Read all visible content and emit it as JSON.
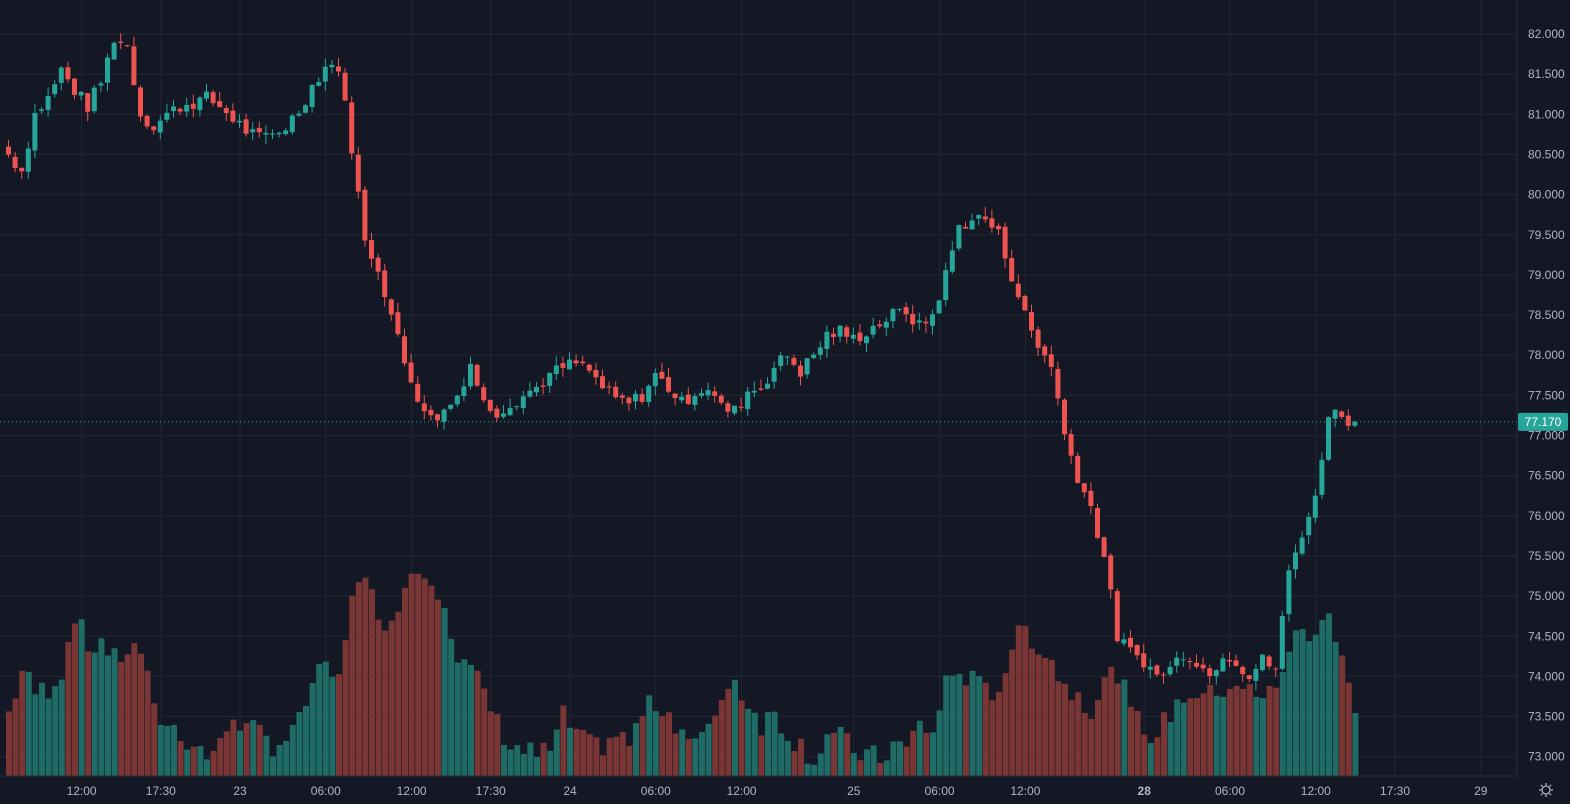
{
  "chart_data": {
    "type": "candlestick",
    "title": "",
    "colors": {
      "background": "#141824",
      "grid": "#232734",
      "up": "#26a69a",
      "down": "#ef5350",
      "up_volume": "#1f6b66",
      "down_volume": "#7a3535",
      "axis_text": "#b2b5be",
      "last_price_bg": "#26a69a"
    },
    "y_axis": {
      "ylim": [
        72.8,
        82.3
      ],
      "ticks": [
        "82.000",
        "81.500",
        "81.000",
        "80.500",
        "80.000",
        "79.500",
        "79.000",
        "78.500",
        "78.000",
        "77.500",
        "77.000",
        "76.500",
        "76.000",
        "75.500",
        "75.000",
        "74.500",
        "74.000",
        "73.500",
        "73.000"
      ]
    },
    "x_axis": {
      "labels": [
        {
          "label": "12:00",
          "i": 6,
          "bold": false
        },
        {
          "label": "17:30",
          "i": 18,
          "bold": false
        },
        {
          "label": "23",
          "i": 30,
          "bold": false
        },
        {
          "label": "06:00",
          "i": 43,
          "bold": false
        },
        {
          "label": "12:00",
          "i": 56,
          "bold": false
        },
        {
          "label": "17:30",
          "i": 68,
          "bold": false
        },
        {
          "label": "24",
          "i": 80,
          "bold": false
        },
        {
          "label": "06:00",
          "i": 93,
          "bold": false
        },
        {
          "label": "12:00",
          "i": 106,
          "bold": false
        },
        {
          "label": "25",
          "i": 123,
          "bold": false
        },
        {
          "label": "06:00",
          "i": 136,
          "bold": false
        },
        {
          "label": "12:00",
          "i": 149,
          "bold": false
        },
        {
          "label": "28",
          "i": 167,
          "bold": true
        },
        {
          "label": "06:00",
          "i": 180,
          "bold": false
        },
        {
          "label": "12:00",
          "i": 193,
          "bold": false
        },
        {
          "label": "17:30",
          "i": 205,
          "bold": false
        },
        {
          "label": "29",
          "i": 218,
          "bold": false
        }
      ]
    },
    "last_price": "77.170",
    "last_price_value": 77.17,
    "anchors": [
      [
        0,
        80.5,
        0.3
      ],
      [
        2,
        80.3,
        0.5
      ],
      [
        4,
        81.0,
        0.4
      ],
      [
        6,
        81.2,
        0.42
      ],
      [
        8,
        81.55,
        0.5
      ],
      [
        10,
        81.3,
        0.78
      ],
      [
        12,
        81.1,
        0.6
      ],
      [
        14,
        81.4,
        0.65
      ],
      [
        16,
        81.95,
        0.55
      ],
      [
        18,
        81.85,
        0.6
      ],
      [
        20,
        81.0,
        0.6
      ],
      [
        22,
        80.85,
        0.3
      ],
      [
        24,
        81.0,
        0.25
      ],
      [
        26,
        81.1,
        0.2
      ],
      [
        28,
        81.15,
        0.15
      ],
      [
        30,
        81.2,
        0.1
      ],
      [
        32,
        81.1,
        0.14
      ],
      [
        34,
        80.95,
        0.3
      ],
      [
        36,
        80.8,
        0.22
      ],
      [
        38,
        80.7,
        0.2
      ],
      [
        40,
        80.75,
        0.15
      ],
      [
        42,
        80.85,
        0.18
      ],
      [
        44,
        81.05,
        0.25
      ],
      [
        46,
        81.35,
        0.45
      ],
      [
        48,
        81.6,
        0.5
      ],
      [
        50,
        81.6,
        0.45
      ],
      [
        52,
        80.6,
        0.9
      ],
      [
        54,
        79.4,
        0.9
      ],
      [
        56,
        79.1,
        0.8
      ],
      [
        58,
        78.5,
        0.7
      ],
      [
        60,
        77.9,
        0.95
      ],
      [
        62,
        77.5,
        0.98
      ],
      [
        64,
        77.2,
        0.95
      ],
      [
        66,
        77.3,
        0.85
      ],
      [
        68,
        77.5,
        0.55
      ],
      [
        70,
        77.9,
        0.5
      ],
      [
        72,
        77.4,
        0.4
      ],
      [
        74,
        77.3,
        0.25
      ],
      [
        76,
        77.4,
        0.15
      ],
      [
        78,
        77.5,
        0.12
      ],
      [
        80,
        77.6,
        0.1
      ],
      [
        82,
        77.75,
        0.12
      ],
      [
        84,
        77.85,
        0.28
      ],
      [
        86,
        77.9,
        0.2
      ],
      [
        88,
        77.8,
        0.14
      ],
      [
        90,
        77.6,
        0.15
      ],
      [
        92,
        77.45,
        0.2
      ],
      [
        94,
        77.4,
        0.15
      ],
      [
        96,
        77.5,
        0.3
      ],
      [
        98,
        77.75,
        0.35
      ],
      [
        100,
        77.6,
        0.3
      ],
      [
        102,
        77.4,
        0.22
      ],
      [
        104,
        77.55,
        0.16
      ],
      [
        106,
        77.6,
        0.2
      ],
      [
        108,
        77.35,
        0.4
      ],
      [
        110,
        77.3,
        0.45
      ],
      [
        112,
        77.55,
        0.35
      ],
      [
        114,
        77.6,
        0.25
      ],
      [
        116,
        77.85,
        0.3
      ],
      [
        118,
        78.0,
        0.2
      ],
      [
        120,
        77.8,
        0.15
      ],
      [
        122,
        78.0,
        0.08
      ],
      [
        124,
        78.25,
        0.2
      ],
      [
        126,
        78.3,
        0.18
      ],
      [
        128,
        78.2,
        0.12
      ],
      [
        130,
        78.3,
        0.1
      ],
      [
        132,
        78.4,
        0.08
      ],
      [
        134,
        78.5,
        0.15
      ],
      [
        136,
        78.55,
        0.13
      ],
      [
        138,
        78.35,
        0.25
      ],
      [
        140,
        78.5,
        0.2
      ],
      [
        142,
        79.0,
        0.45
      ],
      [
        144,
        79.6,
        0.5
      ],
      [
        146,
        79.7,
        0.45
      ],
      [
        148,
        79.7,
        0.4
      ],
      [
        150,
        79.5,
        0.42
      ],
      [
        152,
        79.0,
        0.62
      ],
      [
        154,
        78.5,
        0.7
      ],
      [
        156,
        78.1,
        0.62
      ],
      [
        158,
        77.9,
        0.55
      ],
      [
        160,
        77.0,
        0.42
      ],
      [
        162,
        76.5,
        0.4
      ],
      [
        164,
        76.1,
        0.32
      ],
      [
        166,
        75.5,
        0.45
      ],
      [
        168,
        74.5,
        0.5
      ],
      [
        170,
        74.3,
        0.3
      ],
      [
        172,
        74.2,
        0.22
      ],
      [
        174,
        74.0,
        0.2
      ],
      [
        176,
        74.1,
        0.3
      ],
      [
        178,
        74.3,
        0.38
      ],
      [
        180,
        74.2,
        0.4
      ],
      [
        182,
        74.0,
        0.38
      ],
      [
        184,
        74.3,
        0.42
      ],
      [
        186,
        74.2,
        0.45
      ],
      [
        188,
        74.0,
        0.4
      ],
      [
        190,
        74.2,
        0.35
      ],
      [
        192,
        74.1,
        0.45
      ],
      [
        194,
        75.3,
        0.6
      ],
      [
        196,
        75.8,
        0.7
      ],
      [
        198,
        76.2,
        0.65
      ],
      [
        200,
        77.3,
        0.78
      ],
      [
        202,
        77.25,
        0.6
      ],
      [
        204,
        77.17,
        0.3
      ]
    ]
  }
}
